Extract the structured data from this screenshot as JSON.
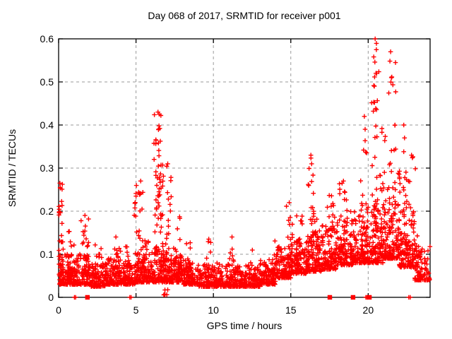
{
  "page": {
    "title": "Day 068 of 2017, SRMTID for receiver p001"
  },
  "colors": {
    "marker": "#ff0000",
    "grid": "#9a9a9a",
    "axis": "#000000",
    "background": "#ffffff",
    "text": "#000000"
  },
  "chart_data": {
    "type": "scatter",
    "title": "Day 068 of 2017, SRMTID for receiver p001",
    "xlabel": "GPS time / hours",
    "ylabel": "SRMTID / TECUs",
    "xlim": [
      0,
      24
    ],
    "ylim": [
      0,
      0.6
    ],
    "xticks": [
      0,
      5,
      10,
      15,
      20
    ],
    "yticks": [
      0,
      0.1,
      0.2,
      0.3,
      0.4,
      0.5,
      0.6
    ],
    "grid": true,
    "legend": "none",
    "marker": {
      "shape": "plus",
      "color": "#ff0000",
      "size": 7
    },
    "seed": 20170068,
    "baseline_segments": [
      [
        0,
        1,
        110,
        0.03,
        0.1
      ],
      [
        1,
        2,
        100,
        0.03,
        0.1
      ],
      [
        2,
        3,
        95,
        0.025,
        0.08
      ],
      [
        3,
        4,
        100,
        0.03,
        0.09
      ],
      [
        4,
        5,
        100,
        0.03,
        0.08
      ],
      [
        5,
        6,
        100,
        0.035,
        0.1
      ],
      [
        6,
        7,
        95,
        0.035,
        0.11
      ],
      [
        7,
        8,
        100,
        0.035,
        0.1
      ],
      [
        8,
        9,
        100,
        0.03,
        0.09
      ],
      [
        9,
        10,
        100,
        0.025,
        0.08
      ],
      [
        10,
        11,
        100,
        0.025,
        0.08
      ],
      [
        11,
        12,
        100,
        0.025,
        0.075
      ],
      [
        12,
        13,
        100,
        0.025,
        0.075
      ],
      [
        13,
        14,
        100,
        0.03,
        0.09
      ],
      [
        14,
        15,
        100,
        0.045,
        0.12
      ],
      [
        15,
        16,
        100,
        0.055,
        0.14
      ],
      [
        16,
        17,
        100,
        0.06,
        0.15
      ],
      [
        17,
        18,
        100,
        0.065,
        0.17
      ],
      [
        18,
        19,
        100,
        0.075,
        0.18
      ],
      [
        19,
        20,
        100,
        0.08,
        0.19
      ],
      [
        20,
        21,
        100,
        0.08,
        0.21
      ],
      [
        21,
        22,
        100,
        0.09,
        0.22
      ],
      [
        22,
        23,
        100,
        0.07,
        0.2
      ],
      [
        23,
        24,
        95,
        0.04,
        0.12
      ]
    ],
    "spike_segments": [
      [
        0.0,
        0.3,
        35,
        0.05,
        0.265
      ],
      [
        0.55,
        1.05,
        18,
        0.05,
        0.16
      ],
      [
        1.45,
        1.95,
        25,
        0.05,
        0.19
      ],
      [
        2.3,
        2.8,
        14,
        0.045,
        0.13
      ],
      [
        3.5,
        4.0,
        18,
        0.05,
        0.14
      ],
      [
        4.3,
        4.55,
        10,
        0.045,
        0.12
      ],
      [
        4.85,
        5.45,
        30,
        0.06,
        0.27
      ],
      [
        5.5,
        5.9,
        14,
        0.05,
        0.14
      ],
      [
        6.15,
        6.65,
        60,
        0.08,
        0.43
      ],
      [
        6.7,
        7.35,
        45,
        0.06,
        0.31
      ],
      [
        7.4,
        7.95,
        22,
        0.05,
        0.2
      ],
      [
        8.25,
        8.6,
        12,
        0.045,
        0.13
      ],
      [
        9.55,
        9.95,
        14,
        0.045,
        0.135
      ],
      [
        11.05,
        11.4,
        10,
        0.04,
        0.14
      ],
      [
        12.35,
        12.65,
        8,
        0.04,
        0.11
      ],
      [
        13.75,
        14.25,
        16,
        0.05,
        0.15
      ],
      [
        14.7,
        15.1,
        26,
        0.07,
        0.22
      ],
      [
        15.25,
        15.75,
        20,
        0.07,
        0.19
      ],
      [
        16.1,
        16.5,
        32,
        0.09,
        0.33
      ],
      [
        16.55,
        17.1,
        22,
        0.07,
        0.21
      ],
      [
        17.35,
        17.85,
        26,
        0.08,
        0.25
      ],
      [
        18.05,
        18.65,
        32,
        0.09,
        0.27
      ],
      [
        18.8,
        19.25,
        22,
        0.09,
        0.25
      ],
      [
        19.5,
        20.0,
        28,
        0.1,
        0.42
      ],
      [
        20.2,
        20.7,
        48,
        0.1,
        0.6
      ],
      [
        20.75,
        21.25,
        32,
        0.09,
        0.4
      ],
      [
        21.3,
        21.8,
        36,
        0.1,
        0.57
      ],
      [
        21.85,
        22.15,
        20,
        0.09,
        0.3
      ],
      [
        22.2,
        22.55,
        22,
        0.09,
        0.4
      ],
      [
        22.6,
        23.05,
        24,
        0.07,
        0.33
      ],
      [
        23.1,
        23.5,
        12,
        0.05,
        0.15
      ],
      [
        6.6,
        7.1,
        6,
        0.005,
        0.025
      ]
    ],
    "peak_points": [
      [
        0.08,
        0.265
      ],
      [
        0.1,
        0.255
      ],
      [
        1.7,
        0.19
      ],
      [
        3.7,
        0.14
      ],
      [
        5.3,
        0.27
      ],
      [
        5.25,
        0.24
      ],
      [
        6.42,
        0.43
      ],
      [
        6.5,
        0.425
      ],
      [
        6.45,
        0.39
      ],
      [
        7.05,
        0.31
      ],
      [
        9.7,
        0.135
      ],
      [
        11.2,
        0.14
      ],
      [
        14.9,
        0.22
      ],
      [
        16.3,
        0.33
      ],
      [
        16.35,
        0.31
      ],
      [
        18.4,
        0.27
      ],
      [
        19.75,
        0.42
      ],
      [
        19.8,
        0.39
      ],
      [
        20.45,
        0.6
      ],
      [
        20.5,
        0.52
      ],
      [
        20.55,
        0.52
      ],
      [
        20.4,
        0.49
      ],
      [
        21.45,
        0.57
      ],
      [
        21.5,
        0.51
      ],
      [
        22.3,
        0.4
      ],
      [
        22.35,
        0.37
      ],
      [
        22.8,
        0.33
      ]
    ],
    "zero_plus_times": [
      1.02,
      1.1,
      4.6,
      4.68,
      19.85,
      19.92,
      22.62,
      22.72
    ],
    "zero_square_times": [
      1.86,
      17.52,
      19.02,
      20.08
    ]
  }
}
